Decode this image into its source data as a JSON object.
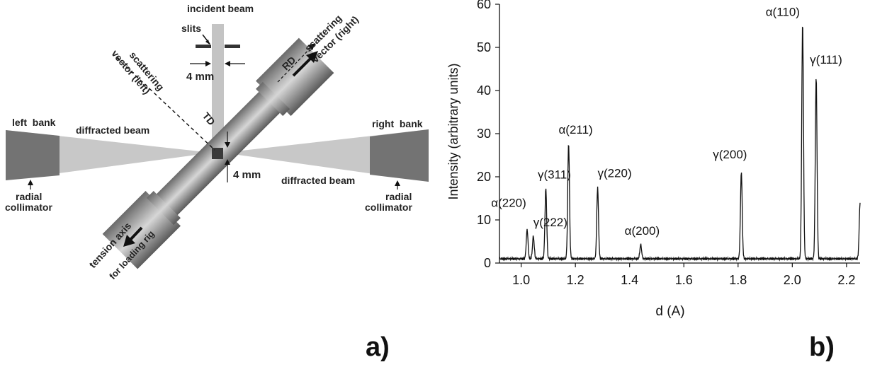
{
  "colors": {
    "beam": "#c4c4c4",
    "bank": "#707070",
    "rod_dark": "#5e5e5e",
    "rod_light": "#d0d0d0",
    "text": "#222222",
    "line": "#111111"
  },
  "diagram": {
    "incident_beam": "incident beam",
    "slits": "slits",
    "slit_width": "4 mm",
    "gauge_width": "4 mm",
    "scattering_vector_left": [
      "scattering",
      "vector (left)"
    ],
    "scattering_vector_right": [
      "scattering",
      "vector (right)"
    ],
    "rd": "RD",
    "td": "TD",
    "left_bank": "left  bank",
    "right_bank": "right  bank",
    "diffracted_beam_left": "diffracted beam",
    "diffracted_beam_right": "diffracted beam",
    "radial_collimator_left": [
      "radial",
      "collimator"
    ],
    "radial_collimator_right": [
      "radial",
      "collimator"
    ],
    "tension_axis": "tension axis",
    "loading_rig": "for loading rig"
  },
  "panel_labels": {
    "a": "a)",
    "b": "b)"
  },
  "chart_data": {
    "type": "line",
    "title": "",
    "xlabel": "d (A)",
    "ylabel": "Intensity (arbitrary units)",
    "xlim": [
      0.92,
      2.25
    ],
    "ylim": [
      0,
      60
    ],
    "xticks": [
      1.0,
      1.2,
      1.4,
      1.6,
      1.8,
      2.0,
      2.2
    ],
    "xtick_labels": [
      "1.0",
      "1.2",
      "1.4",
      "1.6",
      "1.8",
      "2.0",
      "2.2"
    ],
    "yticks": [
      0,
      10,
      20,
      30,
      40,
      50,
      60
    ],
    "ytick_labels": [
      "0",
      "10",
      "20",
      "30",
      "40",
      "50",
      "60"
    ],
    "baseline": 1.0,
    "grid": false,
    "peaks": [
      {
        "label": "α(220)",
        "d": 1.022,
        "intensity": 7.8
      },
      {
        "label": "γ(222)",
        "d": 1.045,
        "intensity": 6.2
      },
      {
        "label": "γ(311)",
        "d": 1.091,
        "intensity": 17.3
      },
      {
        "label": "α(211)",
        "d": 1.175,
        "intensity": 28.0
      },
      {
        "label": "γ(220)",
        "d": 1.282,
        "intensity": 17.6
      },
      {
        "label": "α(200)",
        "d": 1.441,
        "intensity": 4.3
      },
      {
        "label": "γ(200)",
        "d": 1.812,
        "intensity": 21.3
      },
      {
        "label": "α(110)",
        "d": 2.038,
        "intensity": 56.0
      },
      {
        "label": "γ(111)",
        "d": 2.088,
        "intensity": 43.3
      },
      {
        "label": "",
        "d": 2.25,
        "intensity": 14.0
      }
    ]
  }
}
